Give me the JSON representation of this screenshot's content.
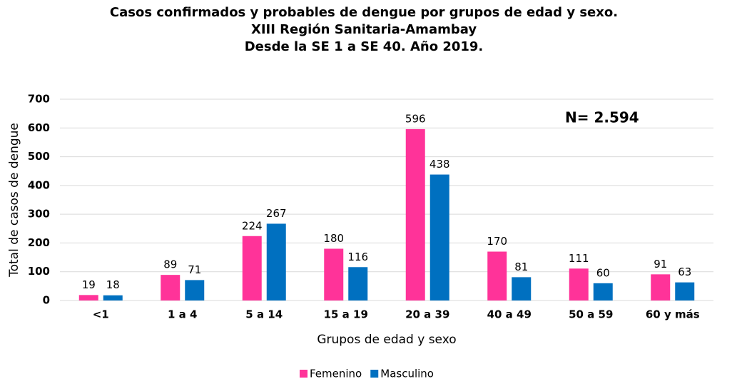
{
  "chart_data": {
    "type": "bar",
    "title": [
      "Casos confirmados y probables de dengue por grupos de edad y sexo.",
      "XIII Región Sanitaria-Amambay",
      "Desde la SE 1 a SE 40. Año 2019."
    ],
    "annotation": "N= 2.594",
    "x_label": "Grupos de edad y sexo",
    "y_label": "Total de casos de dengue",
    "categories": [
      "<1",
      "1 a 4",
      "5 a 14",
      "15 a 19",
      "20 a 39",
      "40 a 49",
      "50 a 59",
      "60 y más"
    ],
    "series": [
      {
        "name": "Femenino",
        "color": "#ff3399",
        "values": [
          19,
          89,
          224,
          180,
          596,
          170,
          111,
          91
        ]
      },
      {
        "name": "Masculino",
        "color": "#0070c0",
        "values": [
          18,
          71,
          267,
          116,
          438,
          81,
          60,
          63
        ]
      }
    ],
    "ylim": [
      0,
      700
    ],
    "yticks": [
      0,
      100,
      200,
      300,
      400,
      500,
      600,
      700
    ],
    "grid": true
  }
}
